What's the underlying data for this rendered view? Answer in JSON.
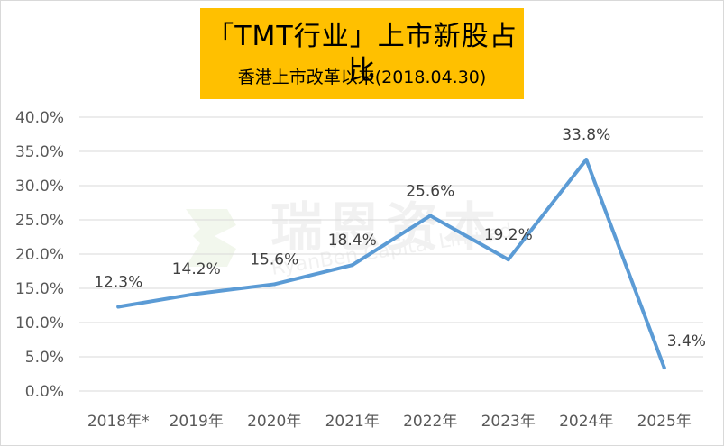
{
  "chart_data": {
    "type": "line",
    "title": "「TMT行业」上市新股占比",
    "subtitle": "香港上市改革以来(2018.04.30)",
    "categories": [
      "2018年*",
      "2019年",
      "2020年",
      "2021年",
      "2022年",
      "2023年",
      "2024年",
      "2025年"
    ],
    "series": [
      {
        "values": [
          12.3,
          14.2,
          15.6,
          18.4,
          25.6,
          19.2,
          33.8,
          3.4
        ],
        "labels": [
          "12.3%",
          "14.2%",
          "15.6%",
          "18.4%",
          "25.6%",
          "19.2%",
          "33.8%",
          "3.4%"
        ],
        "color": "#5b9bd5"
      }
    ],
    "yticks": [
      "0.0%",
      "5.0%",
      "10.0%",
      "15.0%",
      "20.0%",
      "25.0%",
      "30.0%",
      "35.0%",
      "40.0%"
    ],
    "ylim": [
      0,
      40
    ],
    "grid": true,
    "xlabel": "",
    "ylabel": "",
    "title_box_color": "#ffc000",
    "watermark": "瑞恩资本 RyanBen Capital Limited"
  }
}
